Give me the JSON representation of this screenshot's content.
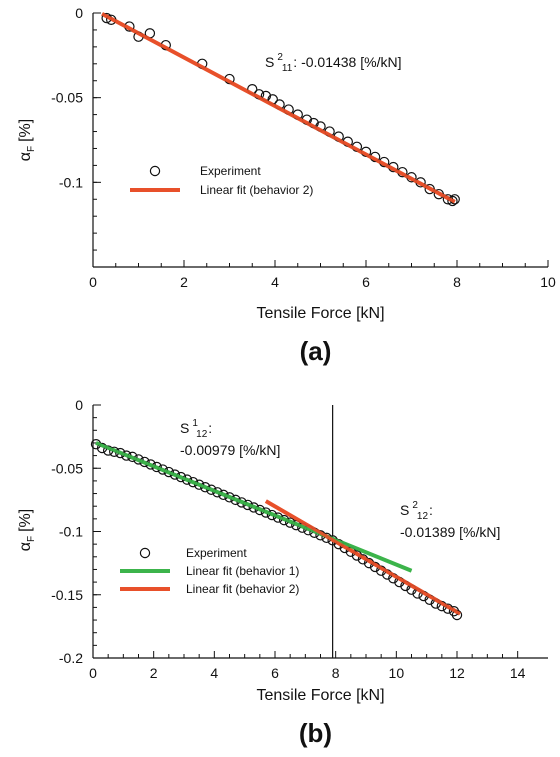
{
  "colors": {
    "fit1": "#3cb44b",
    "fit2": "#e8502a",
    "axis": "#111111",
    "marker": "#111111"
  },
  "chart_data": [
    {
      "type": "scatter",
      "panel_label": "(a)",
      "xlabel": "Tensile Force [kN]",
      "ylabel_main": "α",
      "ylabel_sub": "F",
      "ylabel_unit": "[%]",
      "xlim": [
        0,
        10
      ],
      "ylim": [
        -0.15,
        0
      ],
      "xticks": [
        0,
        2,
        4,
        6,
        8,
        10
      ],
      "yticks": [
        0,
        -0.05,
        -0.1
      ],
      "ytick_labels": [
        "0",
        "-0.05",
        "-0.1"
      ],
      "grid": false,
      "legend_position": "lower-left",
      "legend": [
        {
          "label": "Experiment",
          "kind": "marker"
        },
        {
          "label": "Linear fit (behavior 2)",
          "kind": "line",
          "color": "#e8502a"
        }
      ],
      "annotations": [
        {
          "prefix": "S",
          "sup": "2",
          "sub": "11",
          "text": ": -0.01438 [%/kN]"
        }
      ],
      "series": [
        {
          "name": "Experiment",
          "points": [
            [
              0.3,
              -0.003
            ],
            [
              0.4,
              -0.004
            ],
            [
              0.8,
              -0.008
            ],
            [
              1.0,
              -0.014
            ],
            [
              1.25,
              -0.012
            ],
            [
              1.6,
              -0.019
            ],
            [
              2.4,
              -0.03
            ],
            [
              3.0,
              -0.039
            ],
            [
              3.5,
              -0.045
            ],
            [
              3.65,
              -0.048
            ],
            [
              3.8,
              -0.049
            ],
            [
              3.95,
              -0.051
            ],
            [
              4.1,
              -0.054
            ],
            [
              4.3,
              -0.057
            ],
            [
              4.5,
              -0.06
            ],
            [
              4.7,
              -0.063
            ],
            [
              4.85,
              -0.065
            ],
            [
              5.0,
              -0.067
            ],
            [
              5.2,
              -0.07
            ],
            [
              5.4,
              -0.073
            ],
            [
              5.6,
              -0.076
            ],
            [
              5.8,
              -0.079
            ],
            [
              6.0,
              -0.082
            ],
            [
              6.2,
              -0.085
            ],
            [
              6.4,
              -0.088
            ],
            [
              6.6,
              -0.091
            ],
            [
              6.8,
              -0.094
            ],
            [
              7.0,
              -0.097
            ],
            [
              7.2,
              -0.1
            ],
            [
              7.4,
              -0.104
            ],
            [
              7.6,
              -0.107
            ],
            [
              7.8,
              -0.11
            ],
            [
              7.9,
              -0.111
            ],
            [
              7.95,
              -0.11
            ]
          ]
        },
        {
          "name": "Linear fit (behavior 2)",
          "line": [
            [
              0.2,
              -0.0005
            ],
            [
              7.95,
              -0.1115
            ]
          ],
          "color": "#e8502a"
        }
      ],
      "vline": null
    },
    {
      "type": "scatter",
      "panel_label": "(b)",
      "xlabel": "Tensile Force [kN]",
      "ylabel_main": "α",
      "ylabel_sub": "F",
      "ylabel_unit": "[%]",
      "xlim": [
        0,
        15
      ],
      "ylim": [
        -0.2,
        0
      ],
      "xticks": [
        0,
        2,
        4,
        6,
        8,
        10,
        12,
        14
      ],
      "yticks": [
        0,
        -0.05,
        -0.1,
        -0.15,
        -0.2
      ],
      "ytick_labels": [
        "0",
        "-0.05",
        "-0.1",
        "-0.15",
        "-0.2"
      ],
      "grid": false,
      "legend_position": "lower-left",
      "legend": [
        {
          "label": "Experiment",
          "kind": "marker"
        },
        {
          "label": "Linear fit (behavior 1)",
          "kind": "line",
          "color": "#3cb44b"
        },
        {
          "label": "Linear fit (behavior 2)",
          "kind": "line",
          "color": "#e8502a"
        }
      ],
      "annotations": [
        {
          "prefix": "S",
          "sup": "1",
          "sub": "12",
          "text": ":",
          "line2": "-0.00979 [%/kN]"
        },
        {
          "prefix": "S",
          "sup": "2",
          "sub": "12",
          "text": ":",
          "line2": "-0.01389 [%/kN]"
        }
      ],
      "series": [
        {
          "name": "Experiment",
          "points": [
            [
              0.1,
              -0.031
            ],
            [
              0.3,
              -0.034
            ],
            [
              0.5,
              -0.036
            ],
            [
              0.7,
              -0.037
            ],
            [
              0.9,
              -0.038
            ],
            [
              1.1,
              -0.04
            ],
            [
              1.3,
              -0.041
            ],
            [
              1.5,
              -0.043
            ],
            [
              1.7,
              -0.045
            ],
            [
              1.9,
              -0.047
            ],
            [
              2.1,
              -0.049
            ],
            [
              2.3,
              -0.051
            ],
            [
              2.5,
              -0.053
            ],
            [
              2.7,
              -0.055
            ],
            [
              2.9,
              -0.057
            ],
            [
              3.1,
              -0.059
            ],
            [
              3.3,
              -0.061
            ],
            [
              3.5,
              -0.063
            ],
            [
              3.7,
              -0.065
            ],
            [
              3.9,
              -0.067
            ],
            [
              4.1,
              -0.069
            ],
            [
              4.3,
              -0.071
            ],
            [
              4.5,
              -0.073
            ],
            [
              4.7,
              -0.075
            ],
            [
              4.9,
              -0.077
            ],
            [
              5.1,
              -0.079
            ],
            [
              5.3,
              -0.081
            ],
            [
              5.5,
              -0.083
            ],
            [
              5.7,
              -0.085
            ],
            [
              5.9,
              -0.087
            ],
            [
              6.1,
              -0.089
            ],
            [
              6.3,
              -0.091
            ],
            [
              6.5,
              -0.093
            ],
            [
              6.7,
              -0.095
            ],
            [
              6.9,
              -0.097
            ],
            [
              7.1,
              -0.099
            ],
            [
              7.3,
              -0.101
            ],
            [
              7.5,
              -0.103
            ],
            [
              7.7,
              -0.105
            ],
            [
              7.9,
              -0.107
            ],
            [
              8.1,
              -0.11
            ],
            [
              8.3,
              -0.113
            ],
            [
              8.5,
              -0.116
            ],
            [
              8.7,
              -0.119
            ],
            [
              8.9,
              -0.122
            ],
            [
              9.1,
              -0.125
            ],
            [
              9.3,
              -0.128
            ],
            [
              9.5,
              -0.131
            ],
            [
              9.7,
              -0.134
            ],
            [
              9.9,
              -0.137
            ],
            [
              10.1,
              -0.14
            ],
            [
              10.3,
              -0.143
            ],
            [
              10.5,
              -0.146
            ],
            [
              10.7,
              -0.149
            ],
            [
              10.9,
              -0.151
            ],
            [
              11.1,
              -0.154
            ],
            [
              11.3,
              -0.157
            ],
            [
              11.5,
              -0.159
            ],
            [
              11.7,
              -0.161
            ],
            [
              11.9,
              -0.163
            ],
            [
              12.0,
              -0.166
            ]
          ]
        },
        {
          "name": "Linear fit (behavior 1)",
          "line": [
            [
              0.1,
              -0.03
            ],
            [
              10.5,
              -0.131
            ]
          ],
          "color": "#3cb44b"
        },
        {
          "name": "Linear fit (behavior 2)",
          "line": [
            [
              5.7,
              -0.076
            ],
            [
              12.1,
              -0.165
            ]
          ],
          "color": "#e8502a"
        }
      ],
      "vline": 7.9
    }
  ]
}
